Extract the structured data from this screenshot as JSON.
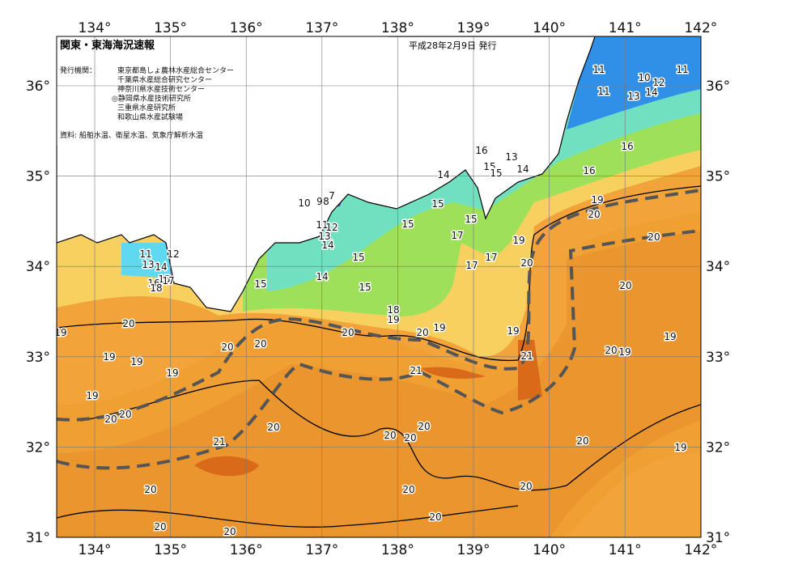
{
  "header": {
    "title": "関東・東海海況速報",
    "date": "平成28年2月9日 発行",
    "issuer_label": "発行機関：",
    "issuers": [
      "東京都島しょ農林水産総合センター",
      "千葉県水産総合研究センター",
      "神奈川県水産技術センター",
      "◎静岡県水産技術研究所",
      "三重県水産研究所",
      "和歌山県水産試験場"
    ],
    "source": "資料: 船舶水温、衛星水温、気象庁解析水温"
  },
  "axes": {
    "longitude": [
      "134°",
      "135°",
      "136°",
      "137°",
      "138°",
      "139°",
      "140°",
      "141°",
      "142°"
    ],
    "latitude": [
      "31°",
      "32°",
      "33°",
      "34°",
      "35°",
      "36°"
    ]
  },
  "contour_labels": [
    "11",
    "11",
    "10",
    "12",
    "11",
    "13",
    "14",
    "16",
    "16",
    "19",
    "20",
    "20",
    "20",
    "19",
    "20",
    "19",
    "16",
    "15",
    "13",
    "15",
    "14",
    "14",
    "15",
    "15",
    "15",
    "17",
    "17",
    "19",
    "20",
    "17",
    "10",
    "9",
    "8",
    "7",
    "11",
    "12",
    "13",
    "14",
    "15",
    "15",
    "14",
    "15",
    "18",
    "19",
    "20",
    "20",
    "19",
    "19",
    "21",
    "21",
    "20",
    "20",
    "20",
    "19",
    "19",
    "19",
    "19",
    "19",
    "20",
    "20",
    "20",
    "21",
    "20",
    "20",
    "20",
    "20",
    "19",
    "20",
    "20",
    "20",
    "20",
    "20",
    "20",
    "11",
    "12",
    "13",
    "14",
    "15",
    "16",
    "17",
    "18"
  ]
}
